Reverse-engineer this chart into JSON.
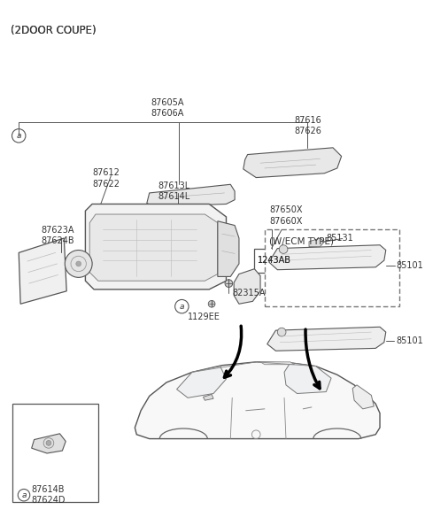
{
  "bg_color": "#ffffff",
  "line_color": "#555555",
  "text_color": "#333333",
  "title": "(2DOOR COUPE)",
  "labels": {
    "87605A_87606A": "87605A\n87606A",
    "87616_87626": "87616\n87626",
    "87612_87622": "87612\n87622",
    "87613L_87614L": "87613L\n87614L",
    "87623A_87624B": "87623A\n87624B",
    "87650X_87660X": "87650X\n87660X",
    "1243AB": "1243AB",
    "82315A": "82315A",
    "1129EE": "1129EE",
    "WECM": "(W/ECM TYPE)",
    "85131": "85131",
    "85101a": "85101",
    "85101b": "85101",
    "87614B_87624D": "87614B\n87624D",
    "circle_a": "a"
  }
}
